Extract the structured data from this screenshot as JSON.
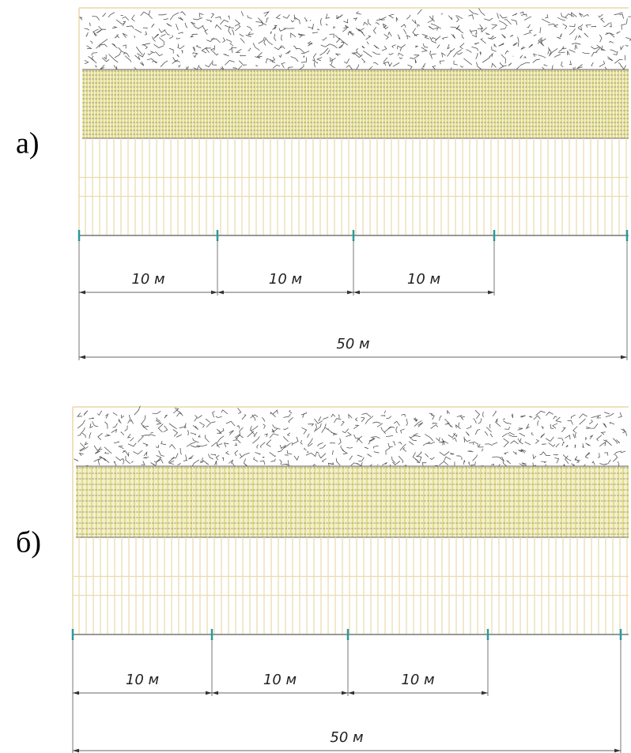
{
  "panels": [
    {
      "label": "а)",
      "dimensions": [
        "10 м",
        "10 м",
        "10 м",
        "50 м"
      ]
    },
    {
      "label": "б)",
      "dimensions": [
        "10 м",
        "10 м",
        "10 м",
        "50 м"
      ]
    }
  ]
}
